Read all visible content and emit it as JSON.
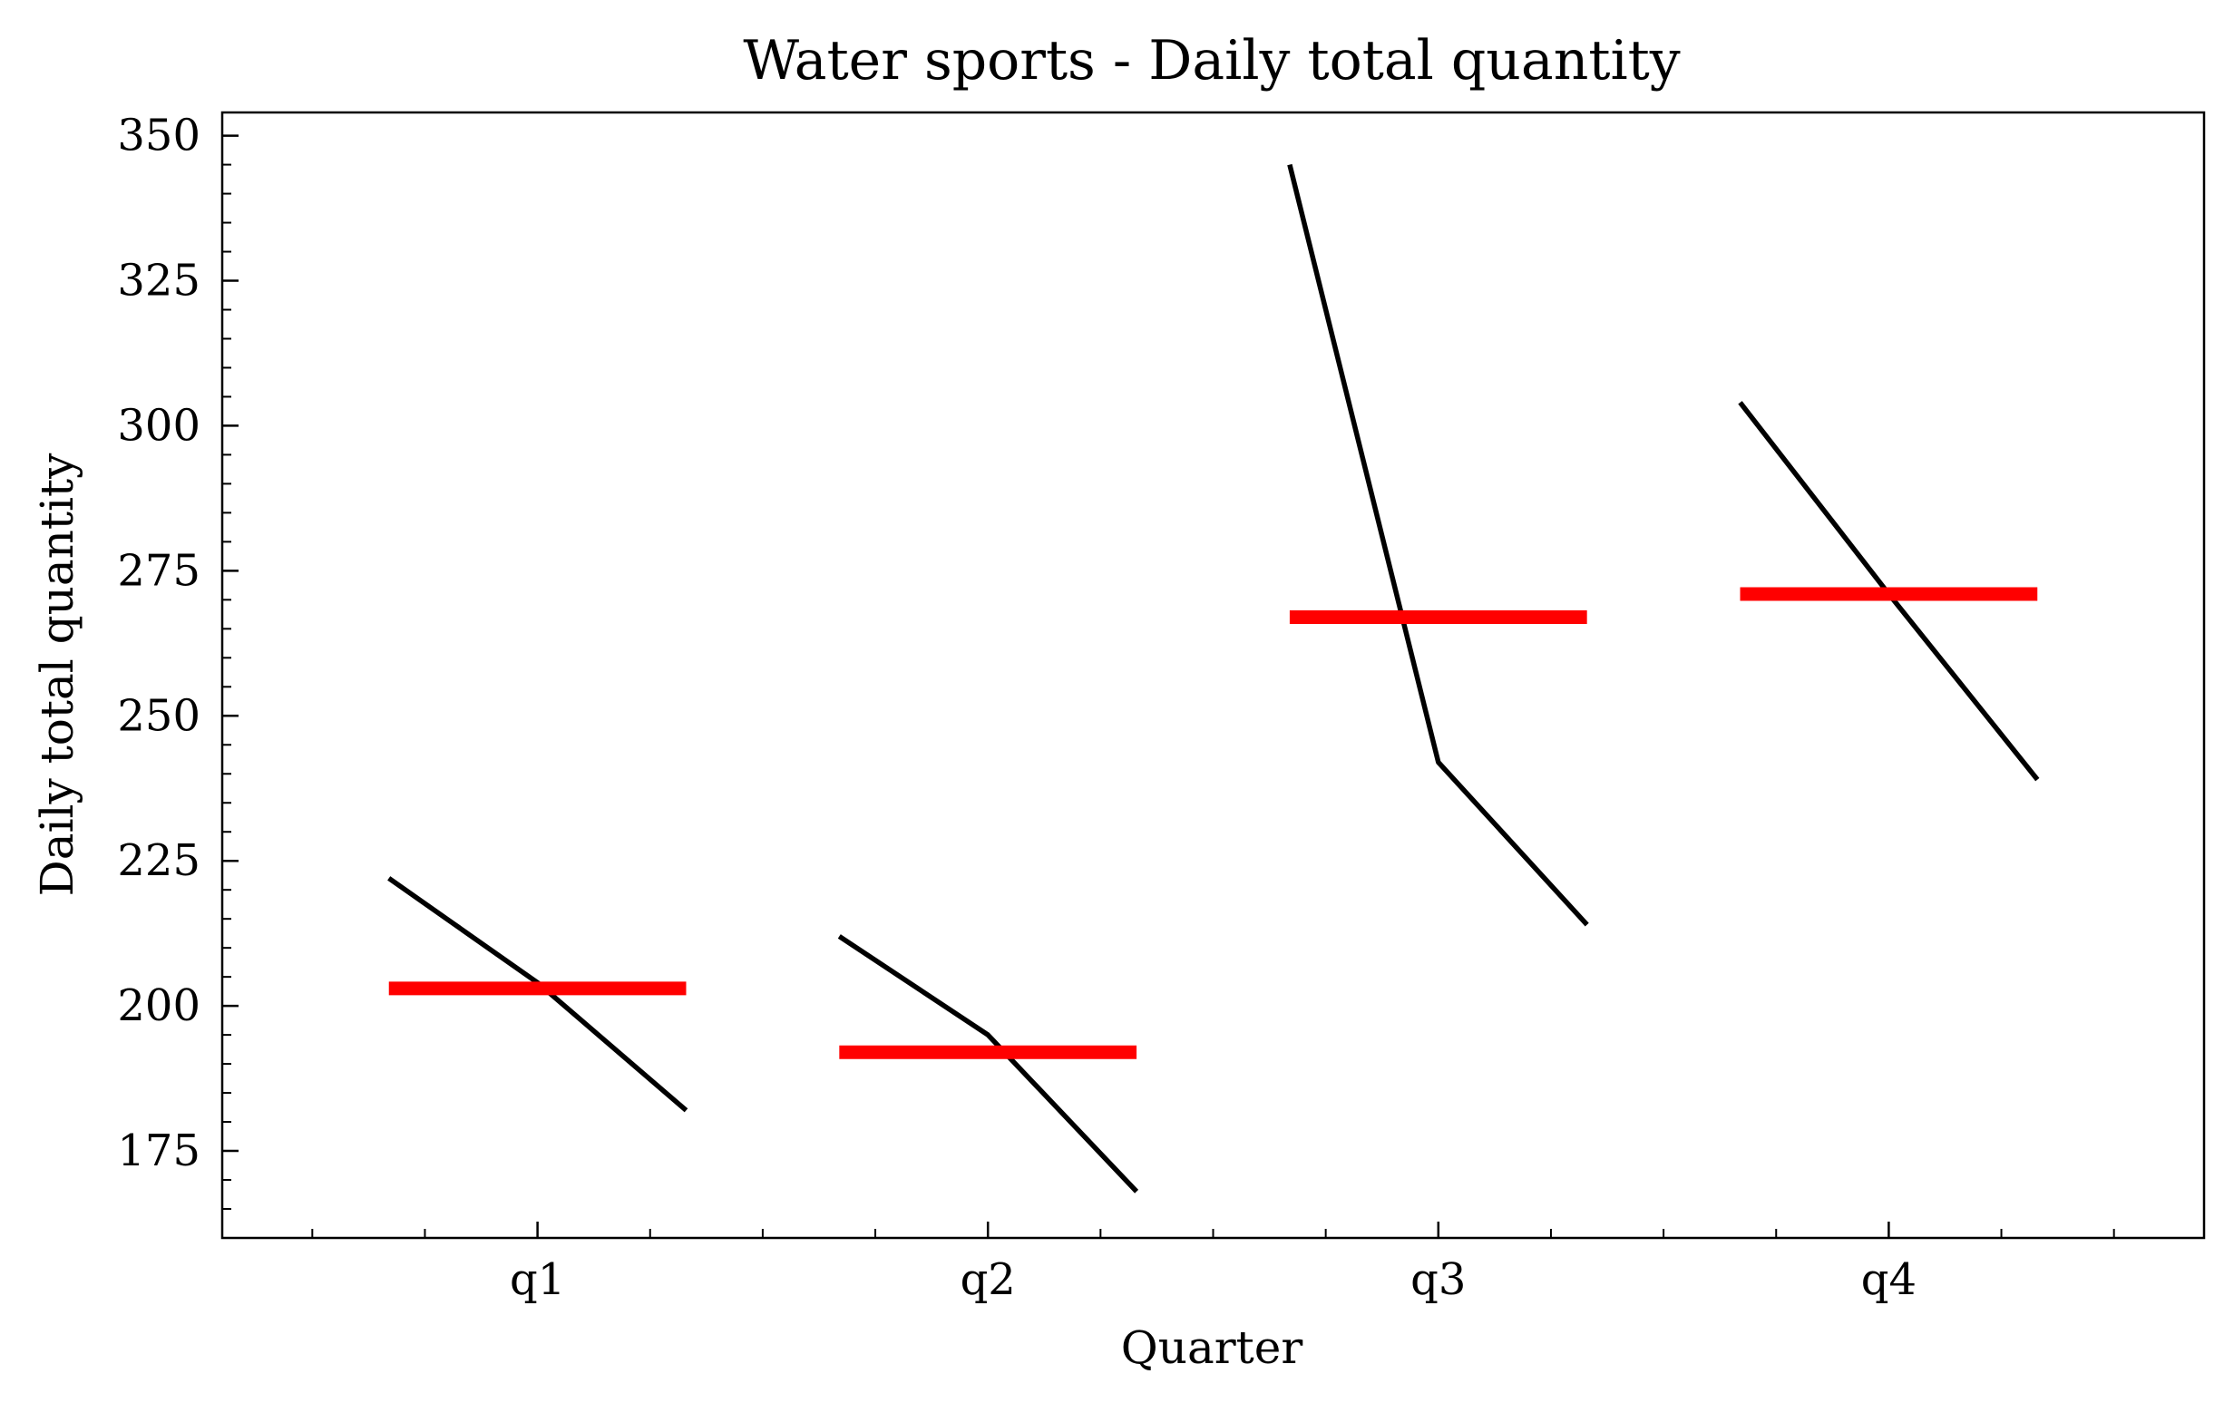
{
  "chart_data": {
    "type": "line",
    "title": "Water sports - Daily total quantity",
    "xlabel": "Quarter",
    "ylabel": "Daily total quantity",
    "categories": [
      "q1",
      "q2",
      "q3",
      "q4"
    ],
    "ylim": [
      160,
      354
    ],
    "y_ticks": [
      175,
      200,
      225,
      250,
      275,
      300,
      325,
      350
    ],
    "grid": false,
    "legend": "none",
    "subseries": [
      {
        "category": "q1",
        "values": [
          222,
          204,
          182
        ],
        "mean": 203
      },
      {
        "category": "q2",
        "values": [
          212,
          195,
          168
        ],
        "mean": 192
      },
      {
        "category": "q3",
        "values": [
          345,
          242,
          214
        ],
        "mean": 267
      },
      {
        "category": "q4",
        "values": [
          304,
          271,
          239
        ],
        "mean": 271
      }
    ],
    "colors": {
      "line": "#000000",
      "mean": "#ff0000",
      "axes": "#000000"
    }
  }
}
